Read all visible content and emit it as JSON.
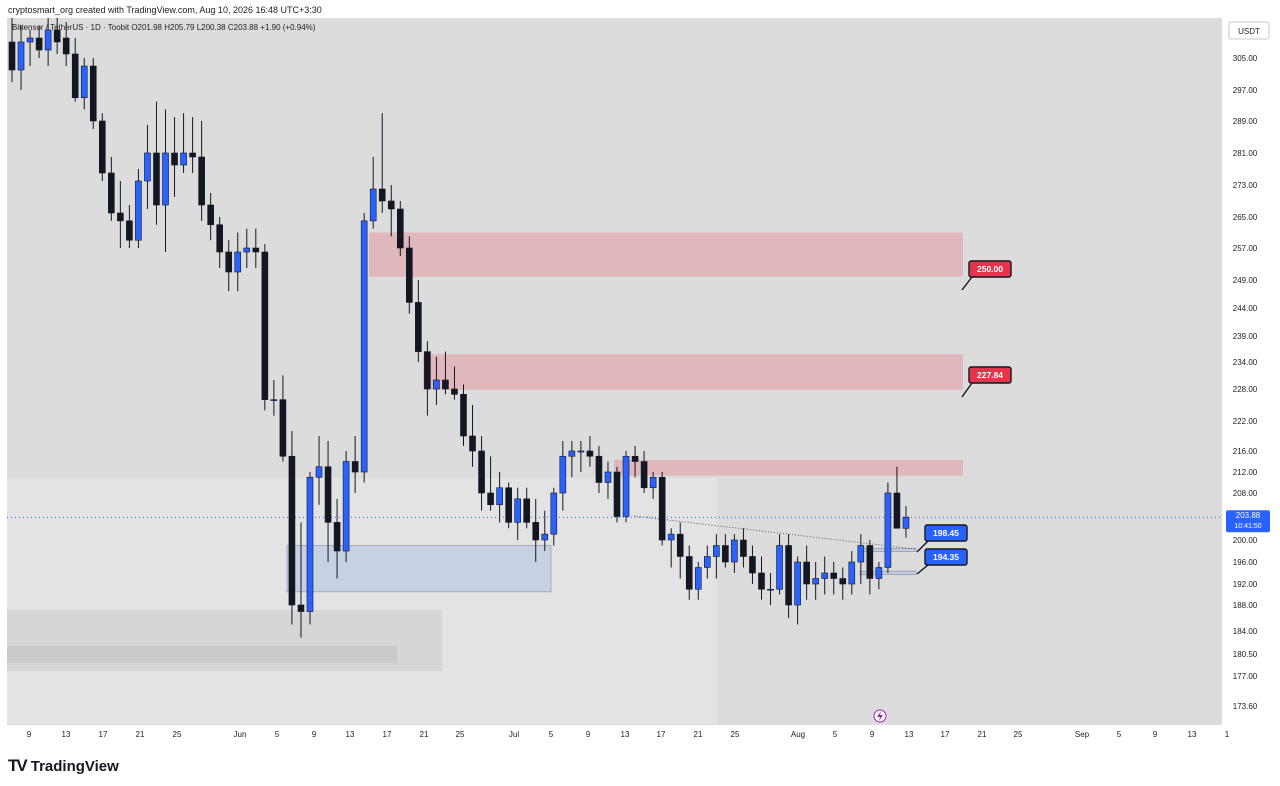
{
  "header": {
    "credit": "cryptosmart_org created with TradingView.com, Aug 10, 2026 16:48 UTC+3:30",
    "ohlc_line": "Bittensor / TetherUS · 1D · Toobit  O201.98  H205.79  L200.38  C203.88  +1.90 (+0.94%)",
    "currency_button": "USDT"
  },
  "footer": {
    "brand_mark": "TV",
    "brand_name": "TradingView"
  },
  "chart_data": {
    "type": "candlestick",
    "symbol": "Bittensor / TetherUS",
    "interval": "1D",
    "exchange": "Toobit",
    "last_bar": {
      "open": 201.98,
      "high": 205.79,
      "low": 200.38,
      "close": 203.88,
      "change": 1.9,
      "change_pct": 0.94
    },
    "price_scale_ticks": [
      305.0,
      297.0,
      289.0,
      281.0,
      273.0,
      265.0,
      257.0,
      249.0,
      244.0,
      239.0,
      234.0,
      228.0,
      222.0,
      216.0,
      212.0,
      208.0,
      200.0,
      196.0,
      192.0,
      188.0,
      184.0,
      180.5,
      177.0,
      173.6
    ],
    "price_scale_labels": [
      "305.00",
      "297.00",
      "289.00",
      "281.00",
      "273.00",
      "265.00",
      "257.00",
      "249.00",
      "244.00",
      "239.00",
      "234.00",
      "228.00",
      "222.00",
      "216.00",
      "212.00",
      "208.00",
      "200.00",
      "196.00",
      "192.00",
      "188.00",
      "184.00",
      "180.50",
      "177.00",
      "173.60"
    ],
    "time_axis_labels": [
      "9",
      "13",
      "17",
      "21",
      "25",
      "Jun",
      "5",
      "9",
      "13",
      "17",
      "21",
      "25",
      "Jul",
      "5",
      "9",
      "13",
      "17",
      "21",
      "25",
      "Aug",
      "5",
      "9",
      "13",
      "17",
      "21",
      "25",
      "Sep",
      "5",
      "9",
      "13",
      "1"
    ],
    "current_price": {
      "value": 203.88,
      "label": "203.88",
      "countdown": "10:41:50"
    },
    "zones": [
      {
        "kind": "resistance",
        "from": "May 15",
        "to": "Aug 19",
        "top": 261.0,
        "bottom": 249.8
      },
      {
        "kind": "resistance",
        "from": "May 20",
        "to": "Aug 19",
        "top": 235.5,
        "bottom": 227.84
      },
      {
        "kind": "resistance",
        "from": "Jul 13",
        "to": "Aug 19",
        "top": 214.3,
        "bottom": 211.3
      },
      {
        "kind": "demand",
        "from": "Jun 7",
        "to": "Jul 9",
        "top": 199.0,
        "bottom": 190.5
      },
      {
        "kind": "demand",
        "from": "Aug 9",
        "to": "Aug 14",
        "top": 198.45,
        "bottom": 197.9
      },
      {
        "kind": "demand",
        "from": "Aug 9",
        "to": "Aug 14",
        "top": 194.35,
        "bottom": 193.7
      }
    ],
    "targets": [
      {
        "label": "250.00",
        "value": 250.0,
        "color": "#e5344c"
      },
      {
        "label": "227.84",
        "value": 227.84,
        "color": "#e5344c"
      },
      {
        "label": "198.45",
        "value": 198.45,
        "color": "#2962ff"
      },
      {
        "label": "194.35",
        "value": 194.35,
        "color": "#2962ff"
      }
    ],
    "candles": [
      {
        "o": 309,
        "h": 315,
        "l": 299,
        "c": 302
      },
      {
        "o": 302,
        "h": 313,
        "l": 297,
        "c": 309
      },
      {
        "o": 309,
        "h": 312,
        "l": 303,
        "c": 310
      },
      {
        "o": 310,
        "h": 313,
        "l": 305,
        "c": 307
      },
      {
        "o": 307,
        "h": 315,
        "l": 303,
        "c": 312
      },
      {
        "o": 312,
        "h": 318,
        "l": 306,
        "c": 309
      },
      {
        "o": 310,
        "h": 314,
        "l": 303,
        "c": 306
      },
      {
        "o": 306,
        "h": 310,
        "l": 294,
        "c": 295
      },
      {
        "o": 295,
        "h": 305,
        "l": 292,
        "c": 303
      },
      {
        "o": 303,
        "h": 305,
        "l": 287,
        "c": 289
      },
      {
        "o": 289,
        "h": 291,
        "l": 274,
        "c": 276
      },
      {
        "o": 276,
        "h": 280,
        "l": 264,
        "c": 266
      },
      {
        "o": 266,
        "h": 274,
        "l": 257,
        "c": 264
      },
      {
        "o": 264,
        "h": 268,
        "l": 257,
        "c": 259
      },
      {
        "o": 259,
        "h": 277,
        "l": 257,
        "c": 274
      },
      {
        "o": 274,
        "h": 288,
        "l": 267,
        "c": 281
      },
      {
        "o": 281,
        "h": 294,
        "l": 263,
        "c": 268
      },
      {
        "o": 268,
        "h": 292,
        "l": 256,
        "c": 281
      },
      {
        "o": 281,
        "h": 290,
        "l": 270,
        "c": 278
      },
      {
        "o": 278,
        "h": 291,
        "l": 276,
        "c": 281
      },
      {
        "o": 281,
        "h": 290,
        "l": 276,
        "c": 280
      },
      {
        "o": 280,
        "h": 289,
        "l": 264,
        "c": 268
      },
      {
        "o": 268,
        "h": 271,
        "l": 259,
        "c": 263
      },
      {
        "o": 263,
        "h": 265,
        "l": 252,
        "c": 256
      },
      {
        "o": 256,
        "h": 259,
        "l": 247,
        "c": 251
      },
      {
        "o": 251,
        "h": 261,
        "l": 247,
        "c": 256
      },
      {
        "o": 256,
        "h": 262,
        "l": 252,
        "c": 257
      },
      {
        "o": 257,
        "h": 262,
        "l": 252,
        "c": 256
      },
      {
        "o": 256,
        "h": 258,
        "l": 224,
        "c": 226
      },
      {
        "o": 226,
        "h": 230,
        "l": 223,
        "c": 226
      },
      {
        "o": 226,
        "h": 231,
        "l": 214,
        "c": 215
      },
      {
        "o": 215,
        "h": 220,
        "l": 185,
        "c": 188
      },
      {
        "o": 188,
        "h": 203,
        "l": 183,
        "c": 187
      },
      {
        "o": 187,
        "h": 212,
        "l": 185,
        "c": 211
      },
      {
        "o": 211,
        "h": 219,
        "l": 206,
        "c": 213
      },
      {
        "o": 213,
        "h": 218,
        "l": 196,
        "c": 203
      },
      {
        "o": 203,
        "h": 207,
        "l": 193,
        "c": 198
      },
      {
        "o": 198,
        "h": 216,
        "l": 196,
        "c": 214
      },
      {
        "o": 214,
        "h": 219,
        "l": 208,
        "c": 212
      },
      {
        "o": 212,
        "h": 266,
        "l": 210,
        "c": 264
      },
      {
        "o": 264,
        "h": 280,
        "l": 262,
        "c": 272
      },
      {
        "o": 272,
        "h": 291,
        "l": 266,
        "c": 269
      },
      {
        "o": 269,
        "h": 273,
        "l": 260,
        "c": 267
      },
      {
        "o": 267,
        "h": 269,
        "l": 255,
        "c": 257
      },
      {
        "o": 257,
        "h": 260,
        "l": 243,
        "c": 245
      },
      {
        "o": 245,
        "h": 249,
        "l": 234,
        "c": 236
      },
      {
        "o": 236,
        "h": 238,
        "l": 223,
        "c": 228
      },
      {
        "o": 228,
        "h": 235,
        "l": 225,
        "c": 230
      },
      {
        "o": 230,
        "h": 236,
        "l": 227,
        "c": 228
      },
      {
        "o": 228,
        "h": 233,
        "l": 226,
        "c": 227
      },
      {
        "o": 227,
        "h": 229,
        "l": 217,
        "c": 219
      },
      {
        "o": 219,
        "h": 225,
        "l": 213,
        "c": 216
      },
      {
        "o": 216,
        "h": 219,
        "l": 205,
        "c": 208
      },
      {
        "o": 208,
        "h": 215,
        "l": 205,
        "c": 206
      },
      {
        "o": 206,
        "h": 212,
        "l": 203,
        "c": 209
      },
      {
        "o": 209,
        "h": 210,
        "l": 202,
        "c": 203
      },
      {
        "o": 203,
        "h": 209,
        "l": 200,
        "c": 207
      },
      {
        "o": 207,
        "h": 209,
        "l": 202,
        "c": 203
      },
      {
        "o": 203,
        "h": 207,
        "l": 196,
        "c": 200
      },
      {
        "o": 200,
        "h": 205,
        "l": 198,
        "c": 201
      },
      {
        "o": 201,
        "h": 209,
        "l": 199,
        "c": 208
      },
      {
        "o": 208,
        "h": 218,
        "l": 205,
        "c": 215
      },
      {
        "o": 215,
        "h": 218,
        "l": 211,
        "c": 216
      },
      {
        "o": 216,
        "h": 218,
        "l": 212,
        "c": 216
      },
      {
        "o": 216,
        "h": 219,
        "l": 213,
        "c": 215
      },
      {
        "o": 215,
        "h": 217,
        "l": 208,
        "c": 210
      },
      {
        "o": 210,
        "h": 214,
        "l": 207,
        "c": 212
      },
      {
        "o": 212,
        "h": 213,
        "l": 203,
        "c": 204
      },
      {
        "o": 204,
        "h": 216,
        "l": 203,
        "c": 215
      },
      {
        "o": 215,
        "h": 217,
        "l": 211,
        "c": 214
      },
      {
        "o": 214,
        "h": 216,
        "l": 208,
        "c": 209
      },
      {
        "o": 209,
        "h": 212,
        "l": 207,
        "c": 211
      },
      {
        "o": 211,
        "h": 212,
        "l": 199,
        "c": 200
      },
      {
        "o": 200,
        "h": 202,
        "l": 195,
        "c": 201
      },
      {
        "o": 201,
        "h": 203,
        "l": 193,
        "c": 197
      },
      {
        "o": 197,
        "h": 199,
        "l": 189,
        "c": 191
      },
      {
        "o": 191,
        "h": 196,
        "l": 189,
        "c": 195
      },
      {
        "o": 195,
        "h": 199,
        "l": 193,
        "c": 197
      },
      {
        "o": 197,
        "h": 201,
        "l": 193,
        "c": 199
      },
      {
        "o": 199,
        "h": 201,
        "l": 195,
        "c": 196
      },
      {
        "o": 196,
        "h": 201,
        "l": 194,
        "c": 200
      },
      {
        "o": 200,
        "h": 202,
        "l": 195,
        "c": 197
      },
      {
        "o": 197,
        "h": 199,
        "l": 192,
        "c": 194
      },
      {
        "o": 194,
        "h": 197,
        "l": 189,
        "c": 191
      },
      {
        "o": 191,
        "h": 194,
        "l": 188,
        "c": 191
      },
      {
        "o": 191,
        "h": 201,
        "l": 190,
        "c": 199
      },
      {
        "o": 199,
        "h": 201,
        "l": 186,
        "c": 188
      },
      {
        "o": 188,
        "h": 197,
        "l": 185,
        "c": 196
      },
      {
        "o": 196,
        "h": 199,
        "l": 189,
        "c": 192
      },
      {
        "o": 192,
        "h": 196,
        "l": 189,
        "c": 193
      },
      {
        "o": 193,
        "h": 197,
        "l": 190,
        "c": 194
      },
      {
        "o": 194,
        "h": 196,
        "l": 190,
        "c": 193
      },
      {
        "o": 193,
        "h": 195,
        "l": 189,
        "c": 192
      },
      {
        "o": 192,
        "h": 198,
        "l": 190,
        "c": 196
      },
      {
        "o": 196,
        "h": 201,
        "l": 192,
        "c": 199
      },
      {
        "o": 199,
        "h": 200,
        "l": 190,
        "c": 193
      },
      {
        "o": 193,
        "h": 196,
        "l": 191,
        "c": 195
      },
      {
        "o": 195,
        "h": 210,
        "l": 194,
        "c": 208
      },
      {
        "o": 208,
        "h": 213,
        "l": 203,
        "c": 202
      },
      {
        "o": 201.98,
        "h": 205.79,
        "l": 200.38,
        "c": 203.88
      }
    ]
  }
}
